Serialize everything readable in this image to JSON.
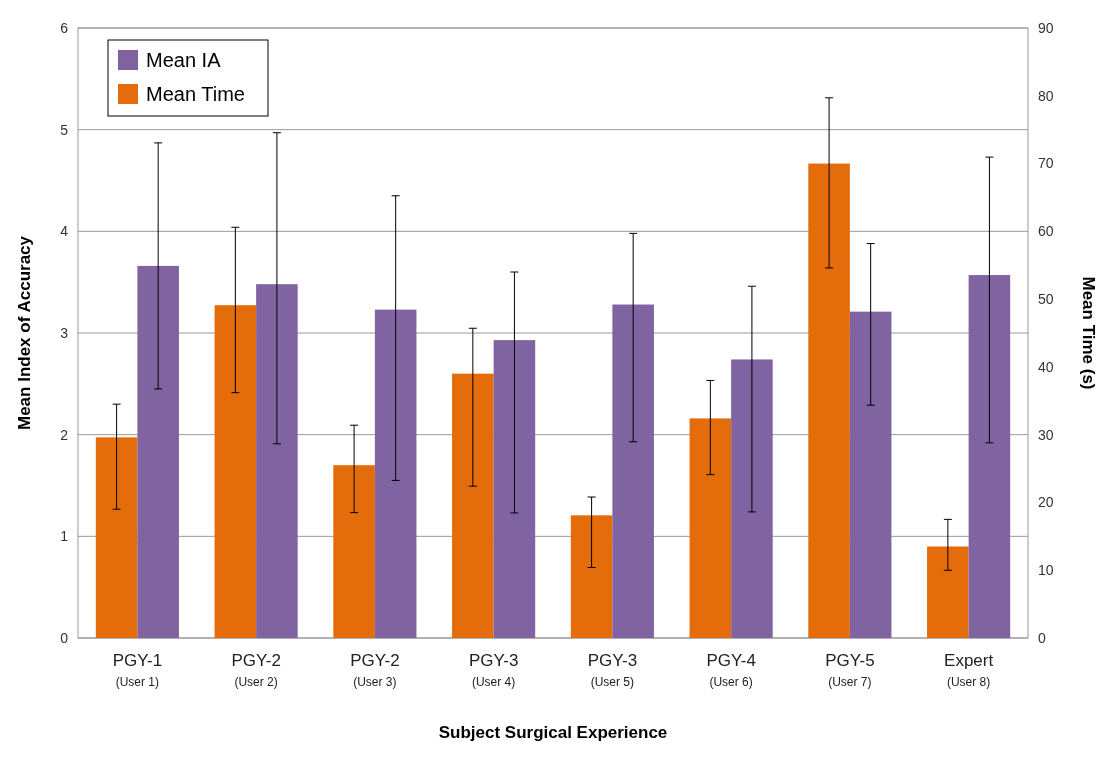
{
  "chart_data": {
    "type": "bar",
    "xlabel": "Subject Surgical Experience",
    "ylabel": "Mean Index of Accuracy",
    "y2label": "Mean Time (s)",
    "categories": [
      "PGY-1\n(User 1)",
      "PGY-2\n(User 2)",
      "PGY-2\n(User 3)",
      "PGY-3\n(User 4)",
      "PGY-3\n(User 5)",
      "PGY-4\n(User 6)",
      "PGY-5\n(User 7)",
      "Expert\n(User 8)"
    ],
    "series": [
      {
        "name": "Mean Time",
        "color": "#e46c0a",
        "axis": "y2",
        "values": [
          29.6,
          49.1,
          25.5,
          39,
          18.1,
          32.4,
          70,
          13.5
        ],
        "errors": [
          [
            19,
            34.5
          ],
          [
            36.2,
            60.6
          ],
          [
            18.5,
            31.4
          ],
          [
            22.4,
            45.7
          ],
          [
            10.4,
            20.8
          ],
          [
            24.1,
            38
          ],
          [
            54.6,
            79.7
          ],
          [
            10,
            17.5
          ]
        ]
      },
      {
        "name": "Mean IA",
        "color": "#8064a2",
        "values": [
          3.66,
          3.48,
          3.23,
          2.93,
          3.28,
          2.74,
          3.21,
          3.57
        ],
        "errors": [
          [
            2.45,
            4.87
          ],
          [
            1.91,
            4.97
          ],
          [
            1.55,
            4.35
          ],
          [
            1.23,
            3.6
          ],
          [
            1.93,
            3.98
          ],
          [
            1.24,
            3.46
          ],
          [
            2.29,
            3.88
          ],
          [
            1.92,
            4.73
          ]
        ]
      }
    ],
    "ylim": [
      0,
      6
    ],
    "yticks": [
      0,
      1,
      2,
      3,
      4,
      5,
      6
    ],
    "y2lim": [
      0,
      90
    ],
    "y2ticks": [
      0,
      10,
      20,
      30,
      40,
      50,
      60,
      70,
      80,
      90
    ],
    "grid": "y",
    "legend": "top left"
  }
}
